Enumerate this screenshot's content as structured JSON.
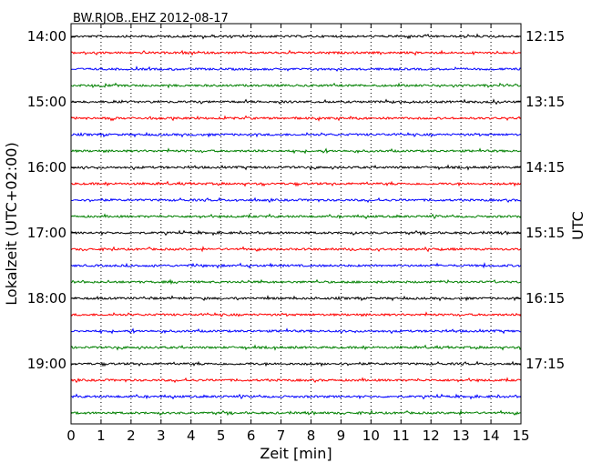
{
  "chart_data": {
    "type": "line",
    "title": "BW.RJOB..EHZ 2012-08-17",
    "xlabel": "Zeit  [min]",
    "ylabel": "Lokalzeit (UTC+02:00)",
    "ylabel_right": "UTC",
    "xlim": [
      0,
      15
    ],
    "x_ticks": [
      "0",
      "1",
      "2",
      "3",
      "4",
      "5",
      "6",
      "7",
      "8",
      "9",
      "10",
      "11",
      "12",
      "13",
      "14",
      "15"
    ],
    "left_ticks": [
      "14:00",
      "15:00",
      "16:00",
      "17:00",
      "18:00",
      "19:00"
    ],
    "right_ticks": [
      "12:15",
      "13:15",
      "14:15",
      "15:15",
      "16:15",
      "17:15"
    ],
    "rows_per_hour": 4,
    "trace_count": 24,
    "trace_colors": [
      "#000000",
      "#ff0000",
      "#0000ff",
      "#008000"
    ],
    "grid": "vertical dotted at each minute"
  }
}
